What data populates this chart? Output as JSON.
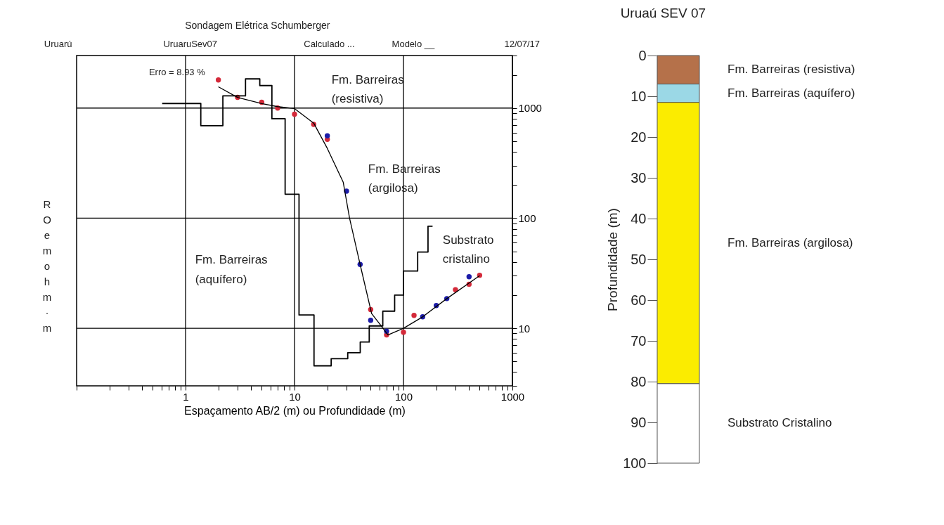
{
  "chart_data": [
    {
      "type": "scatter",
      "title": "Sondagem Elétrica Schumberger",
      "xlabel": "Espaçamento AB/2 (m) ou Profundidade (m)",
      "ylabel": "RO em ohm·m",
      "log": "xy",
      "grid": true,
      "xlim": [
        0.1,
        1000
      ],
      "ylim": [
        3,
        3000
      ],
      "xticks": [
        {
          "value": 0.1,
          "label": null
        },
        {
          "value": 0.2,
          "label": null
        },
        {
          "value": 0.3,
          "label": null
        },
        {
          "value": 0.4,
          "label": null
        },
        {
          "value": 0.5,
          "label": null
        },
        {
          "value": 0.6,
          "label": null
        },
        {
          "value": 0.7,
          "label": null
        },
        {
          "value": 0.8,
          "label": null
        },
        {
          "value": 0.9,
          "label": null
        },
        1,
        {
          "value": 2,
          "label": null
        },
        {
          "value": 3,
          "label": null
        },
        {
          "value": 4,
          "label": null
        },
        {
          "value": 5,
          "label": null
        },
        {
          "value": 6,
          "label": null
        },
        {
          "value": 7,
          "label": null
        },
        {
          "value": 8,
          "label": null
        },
        {
          "value": 9,
          "label": null
        },
        10,
        {
          "value": 20,
          "label": null
        },
        {
          "value": 30,
          "label": null
        },
        {
          "value": 40,
          "label": null
        },
        {
          "value": 50,
          "label": null
        },
        {
          "value": 60,
          "label": null
        },
        {
          "value": 70,
          "label": null
        },
        {
          "value": 80,
          "label": null
        },
        {
          "value": 90,
          "label": null
        },
        100,
        {
          "value": 200,
          "label": null
        },
        {
          "value": 300,
          "label": null
        },
        {
          "value": 400,
          "label": null
        },
        {
          "value": 500,
          "label": null
        },
        {
          "value": 600,
          "label": null
        },
        {
          "value": 700,
          "label": null
        },
        {
          "value": 800,
          "label": null
        },
        {
          "value": 900,
          "label": null
        },
        1000
      ],
      "yticks": [
        {
          "value": 3,
          "label": null
        },
        {
          "value": 4,
          "label": null
        },
        {
          "value": 5,
          "label": null
        },
        {
          "value": 6,
          "label": null
        },
        {
          "value": 7,
          "label": null
        },
        {
          "value": 8,
          "label": null
        },
        {
          "value": 9,
          "label": null
        },
        10,
        {
          "value": 20,
          "label": null
        },
        {
          "value": 30,
          "label": null
        },
        {
          "value": 40,
          "label": null
        },
        {
          "value": 50,
          "label": null
        },
        {
          "value": 60,
          "label": null
        },
        {
          "value": 70,
          "label": null
        },
        {
          "value": 80,
          "label": null
        },
        {
          "value": 90,
          "label": null
        },
        100,
        {
          "value": 200,
          "label": null
        },
        {
          "value": 300,
          "label": null
        },
        {
          "value": 400,
          "label": null
        },
        {
          "value": 500,
          "label": null
        },
        {
          "value": 600,
          "label": null
        },
        {
          "value": 700,
          "label": null
        },
        {
          "value": 800,
          "label": null
        },
        {
          "value": 900,
          "label": null
        },
        1000,
        {
          "value": 2000,
          "label": null
        },
        {
          "value": 3000,
          "label": null
        }
      ],
      "series": [
        {
          "type": "scatter",
          "marker": "circle",
          "color": "#d42a3a",
          "x": [
            2,
            3,
            5,
            7,
            10,
            15,
            20,
            50,
            70,
            100,
            125,
            300,
            400,
            500
          ],
          "values": [
            1800,
            1250,
            1130,
            1000,
            880,
            710,
            520,
            14.8,
            8.7,
            9.2,
            13.1,
            22.4,
            25.1,
            30.3
          ]
        },
        {
          "type": "scatter",
          "marker": "circle",
          "color": "#1c1ca8",
          "x": [
            20,
            30,
            40,
            50,
            70,
            150,
            200,
            250,
            400
          ],
          "values": [
            560,
            176,
            38,
            11.8,
            9.4,
            12.7,
            16.1,
            18.6,
            29.4
          ]
        },
        {
          "type": "line",
          "color": "#000000",
          "x": [
            2,
            3,
            5,
            7,
            10,
            15,
            20,
            28,
            32,
            40,
            51,
            65,
            72,
            100,
            150,
            250,
            500
          ],
          "values": [
            1560,
            1250,
            1100,
            1030,
            990,
            730,
            430,
            212,
            100,
            38,
            13.6,
            10,
            8.7,
            10,
            12.7,
            18.6,
            30
          ]
        },
        {
          "type": "step",
          "color": "#000000",
          "x": [
            0.61,
            1.38,
            2.2,
            3.55,
            4.8,
            6.2,
            8.2,
            11,
            15.1,
            21.7,
            30.8,
            40.1,
            48.5,
            64.6,
            83,
            100,
            135,
            168,
            185
          ],
          "values": [
            1100,
            692,
            1290,
            1840,
            1600,
            800,
            165,
            13.2,
            4.56,
            5.3,
            6,
            7.5,
            10.5,
            14.3,
            20,
            33.1,
            49.3,
            84.5,
            84.5
          ]
        }
      ],
      "annotations": [
        "Uruarú",
        "UruaruSev07",
        "Calculado ...",
        "Modelo __",
        "12/07/17",
        "Erro = 8.93 %",
        "Fm. Barreiras\n(resistiva)",
        "Fm. Barreiras\n(argilosa)",
        "Fm. Barreiras\n(aquífero)",
        "Substrato\ncristalino"
      ]
    },
    {
      "type": "bar",
      "title": "Uruaú SEV 07",
      "ylabel": "Profundidade (m)",
      "stacked": true,
      "categories": [
        null
      ],
      "ylim": [
        100,
        0
      ],
      "yticks": [
        0,
        10,
        20,
        30,
        40,
        50,
        60,
        70,
        80,
        90,
        100
      ],
      "series": [
        {
          "name": "Fm. Barreiras (resistiva)",
          "color": "#b5714a",
          "values": [
            7
          ]
        },
        {
          "name": "Fm. Barreiras (aquífero)",
          "color": "#9bd8e6",
          "values": [
            4.5
          ]
        },
        {
          "name": "Fm. Barreiras (argilosa)",
          "color": "#fbec00",
          "values": [
            69
          ]
        },
        {
          "name": "Substrato Cristalino",
          "color": "#ffffff",
          "values": [
            19.5
          ]
        }
      ]
    }
  ]
}
